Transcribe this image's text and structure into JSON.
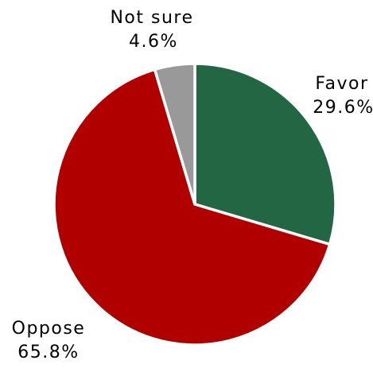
{
  "chart_data": {
    "type": "pie",
    "slices": [
      {
        "label": "Favor",
        "value": 29.6,
        "value_label": "29.6%",
        "color": "#236644"
      },
      {
        "label": "Oppose",
        "value": 65.8,
        "value_label": "65.8%",
        "color": "#b00000"
      },
      {
        "label": "Not sure",
        "value": 4.6,
        "value_label": "4.6%",
        "color": "#999999"
      }
    ],
    "start_angle_deg": 0,
    "direction": "clockwise",
    "legend": "none"
  }
}
